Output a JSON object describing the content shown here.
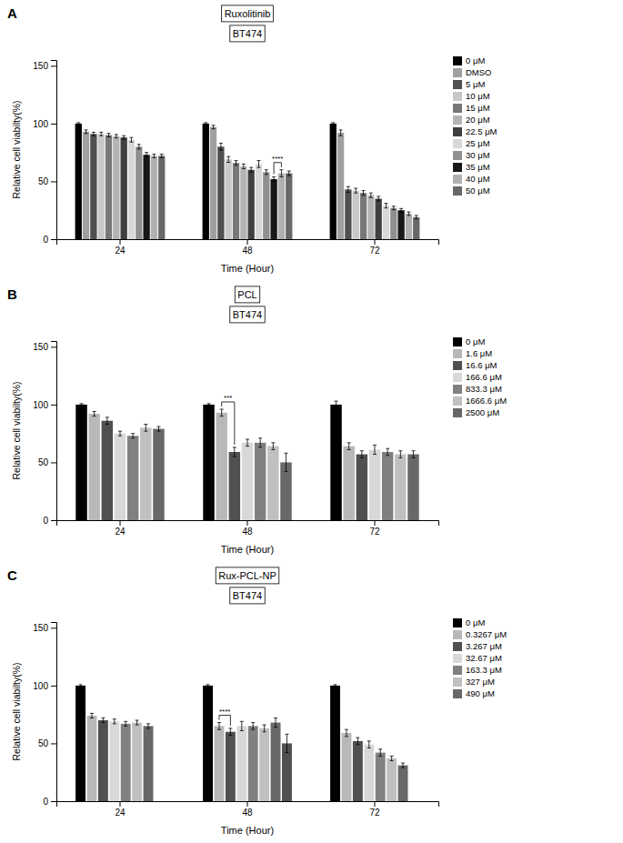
{
  "chart_data": [
    {
      "type": "bar",
      "title": "Ruxolitinib",
      "subtitle": "BT474",
      "x_label": "Time (Hour)",
      "y_label": "Relative cell viabilty(%)",
      "categories": [
        "24",
        "48",
        "72"
      ],
      "ylim": [
        0,
        155
      ],
      "yticks": [
        0,
        50,
        100,
        150
      ],
      "grid": false,
      "legend": "right",
      "series": [
        {
          "name": "0 μM",
          "color": "#000000",
          "values": [
            100,
            100,
            100
          ],
          "errors": [
            0.8,
            0.8,
            0.8
          ]
        },
        {
          "name": "DMSO",
          "color": "#a0a0a0",
          "values": [
            93,
            97,
            92
          ],
          "errors": [
            1.5,
            1.5,
            2.5
          ]
        },
        {
          "name": "5 μM",
          "color": "#505050",
          "values": [
            91,
            80,
            43
          ],
          "errors": [
            1.5,
            3,
            2.5
          ]
        },
        {
          "name": "10 μM",
          "color": "#c8c8c8",
          "values": [
            91,
            69,
            42
          ],
          "errors": [
            1.5,
            2.5,
            2
          ]
        },
        {
          "name": "15 μM",
          "color": "#787878",
          "values": [
            90,
            66,
            40
          ],
          "errors": [
            1.5,
            2,
            2
          ]
        },
        {
          "name": "20 μM",
          "color": "#b4b4b4",
          "values": [
            89,
            63,
            38
          ],
          "errors": [
            1.5,
            2,
            2
          ]
        },
        {
          "name": "22.5 μM",
          "color": "#404040",
          "values": [
            88,
            60,
            35
          ],
          "errors": [
            1.5,
            2,
            2
          ]
        },
        {
          "name": "25 μM",
          "color": "#d8d8d8",
          "values": [
            86,
            65,
            29
          ],
          "errors": [
            2,
            3,
            2
          ]
        },
        {
          "name": "30 μM",
          "color": "#909090",
          "values": [
            80,
            58,
            27
          ],
          "errors": [
            2,
            2,
            1.5
          ]
        },
        {
          "name": "35 μM",
          "color": "#181818",
          "values": [
            73,
            52,
            25
          ],
          "errors": [
            2,
            2,
            1.5
          ]
        },
        {
          "name": "40 μM",
          "color": "#b0b0b0",
          "values": [
            72,
            57,
            22
          ],
          "errors": [
            1.5,
            3,
            1.5
          ]
        },
        {
          "name": "50 μM",
          "color": "#686868",
          "values": [
            72,
            57,
            19
          ],
          "errors": [
            1.5,
            2,
            1.5
          ]
        }
      ],
      "annotations": [
        {
          "text": "A"
        },
        {
          "text": "****",
          "category": "48",
          "between": [
            "35 μM",
            "40 μM"
          ]
        }
      ]
    },
    {
      "type": "bar",
      "title": "PCL",
      "subtitle": "BT474",
      "x_label": "Time (Hour)",
      "y_label": "Relative cell viabilty(%)",
      "categories": [
        "24",
        "48",
        "72"
      ],
      "ylim": [
        0,
        155
      ],
      "yticks": [
        0,
        50,
        100,
        150
      ],
      "grid": false,
      "legend": "right",
      "series": [
        {
          "name": "0 μM",
          "color": "#000000",
          "values": [
            100,
            100,
            100
          ],
          "errors": [
            0.8,
            0.8,
            3
          ]
        },
        {
          "name": "1.6 μM",
          "color": "#b8b8b8",
          "values": [
            92,
            93,
            64
          ],
          "errors": [
            2,
            3,
            3
          ]
        },
        {
          "name": "16.6 μM",
          "color": "#505050",
          "values": [
            86,
            59,
            57
          ],
          "errors": [
            3,
            4,
            3
          ]
        },
        {
          "name": "166.6 μM",
          "color": "#d8d8d8",
          "values": [
            75,
            67,
            61
          ],
          "errors": [
            2,
            3,
            4
          ]
        },
        {
          "name": "833.3 μM",
          "color": "#808080",
          "values": [
            73,
            67,
            59
          ],
          "errors": [
            2,
            4,
            3
          ]
        },
        {
          "name": "1666.6 μM",
          "color": "#c0c0c0",
          "values": [
            80,
            64,
            57
          ],
          "errors": [
            3,
            3,
            3
          ]
        },
        {
          "name": "2500 μM",
          "color": "#686868",
          "values": [
            79,
            50,
            57
          ],
          "errors": [
            2,
            8,
            3
          ]
        }
      ],
      "annotations": [
        {
          "text": "B"
        },
        {
          "text": "***",
          "category": "48",
          "between": [
            "1.6 μM",
            "16.6 μM"
          ]
        }
      ]
    },
    {
      "type": "bar",
      "title": "Rux-PCL-NP",
      "subtitle": "BT474",
      "x_label": "Time (Hour)",
      "y_label": "Relative cell viabilty(%)",
      "categories": [
        "24",
        "48",
        "72"
      ],
      "ylim": [
        0,
        155
      ],
      "yticks": [
        0,
        50,
        100,
        150
      ],
      "grid": false,
      "legend": "right",
      "series": [
        {
          "name": "0 μM",
          "color": "#000000",
          "values": [
            100,
            100,
            100
          ],
          "errors": [
            0.8,
            0.8,
            0.8
          ]
        },
        {
          "name": "0.3267 μM",
          "color": "#b8b8b8",
          "values": [
            74,
            65,
            59
          ],
          "errors": [
            2,
            3,
            3
          ]
        },
        {
          "name": "3.267 μM",
          "color": "#505050",
          "values": [
            70,
            60,
            52
          ],
          "errors": [
            2,
            3,
            3
          ]
        },
        {
          "name": "32.67 μM",
          "color": "#d8d8d8",
          "values": [
            69,
            65,
            49
          ],
          "errors": [
            2,
            4,
            3
          ]
        },
        {
          "name": "163.3 μM",
          "color": "#808080",
          "values": [
            67,
            65,
            42
          ],
          "errors": [
            2,
            3,
            3
          ]
        },
        {
          "name": "327 μM",
          "color": "#c0c0c0",
          "values": [
            68,
            63,
            37
          ],
          "errors": [
            2,
            3,
            2
          ]
        },
        {
          "name": "490 μM",
          "color": "#686868",
          "values": [
            65,
            68,
            31
          ],
          "errors": [
            2,
            4,
            2
          ]
        },
        {
          "color": "#505050",
          "values": [
            null,
            50,
            null
          ],
          "errors": [
            null,
            8,
            null
          ]
        }
      ],
      "annotations": [
        {
          "text": "C"
        },
        {
          "text": "****",
          "category": "48",
          "between": [
            "0.3267 μM",
            "3.267 μM"
          ]
        }
      ]
    }
  ]
}
